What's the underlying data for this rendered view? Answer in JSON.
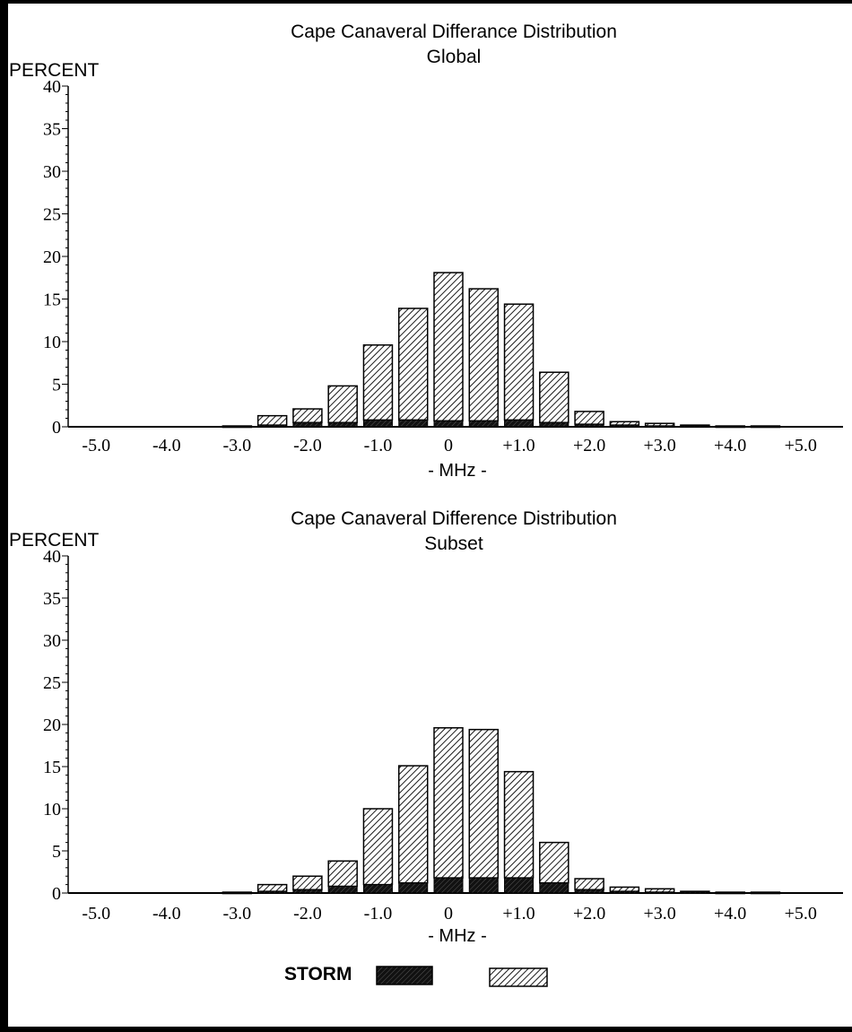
{
  "chart_data": [
    {
      "type": "bar",
      "stacked": true,
      "title": "Cape Canaveral Differance Distribution",
      "subtitle": "Global",
      "ylabel": "PERCENT",
      "xlabel": "- MHz -",
      "ylim": [
        0,
        40
      ],
      "yticks": [
        0,
        5,
        10,
        15,
        20,
        25,
        30,
        35,
        40
      ],
      "xlim": [
        -5.5,
        5.5
      ],
      "xtick_labels": [
        "-5.0",
        "-4.0",
        "-3.0",
        "-2.0",
        "-1.0",
        "0",
        "+1.0",
        "+2.0",
        "+3.0",
        "+4.0",
        "+5.0"
      ],
      "x": [
        -5.0,
        -4.5,
        -4.0,
        -3.5,
        -3.0,
        -2.5,
        -2.0,
        -1.5,
        -1.0,
        -0.5,
        0.0,
        0.5,
        1.0,
        1.5,
        2.0,
        2.5,
        3.0,
        3.5,
        4.0,
        4.5,
        5.0
      ],
      "series": [
        {
          "name": "STORM",
          "values": [
            0,
            0,
            0,
            0,
            0,
            0.2,
            0.5,
            0.5,
            0.8,
            0.8,
            0.7,
            0.7,
            0.8,
            0.5,
            0.3,
            0.2,
            0.1,
            0.1,
            0,
            0,
            0
          ]
        },
        {
          "name": "",
          "values": [
            0,
            0,
            0,
            0,
            0.1,
            1.1,
            1.6,
            4.3,
            8.8,
            13.1,
            17.4,
            15.5,
            13.6,
            5.9,
            1.5,
            0.4,
            0.3,
            0.1,
            0.1,
            0.1,
            0
          ]
        }
      ]
    },
    {
      "type": "bar",
      "stacked": true,
      "title": "Cape Canaveral Difference Distribution",
      "subtitle": "Subset",
      "ylabel": "PERCENT",
      "xlabel": "- MHz -",
      "ylim": [
        0,
        40
      ],
      "yticks": [
        0,
        5,
        10,
        15,
        20,
        25,
        30,
        35,
        40
      ],
      "xlim": [
        -5.5,
        5.5
      ],
      "xtick_labels": [
        "-5.0",
        "-4.0",
        "-3.0",
        "-2.0",
        "-1.0",
        "0",
        "+1.0",
        "+2.0",
        "+3.0",
        "+4.0",
        "+5.0"
      ],
      "x": [
        -5.0,
        -4.5,
        -4.0,
        -3.5,
        -3.0,
        -2.5,
        -2.0,
        -1.5,
        -1.0,
        -0.5,
        0.0,
        0.5,
        1.0,
        1.5,
        2.0,
        2.5,
        3.0,
        3.5,
        4.0,
        4.5,
        5.0
      ],
      "series": [
        {
          "name": "STORM",
          "values": [
            0,
            0,
            0,
            0,
            0,
            0.2,
            0.4,
            0.8,
            1.0,
            1.2,
            1.8,
            1.8,
            1.8,
            1.2,
            0.4,
            0.2,
            0.1,
            0.1,
            0,
            0,
            0
          ]
        },
        {
          "name": "",
          "values": [
            0,
            0,
            0,
            0,
            0.1,
            0.8,
            1.6,
            3.0,
            9.0,
            13.9,
            17.8,
            17.6,
            12.6,
            4.8,
            1.3,
            0.5,
            0.4,
            0.1,
            0.1,
            0.1,
            0
          ]
        }
      ]
    }
  ],
  "legend": {
    "label": "STORM",
    "colors": {
      "storm": "#1a1a1a",
      "hatch": "#000000",
      "background": "#ffffff"
    }
  }
}
